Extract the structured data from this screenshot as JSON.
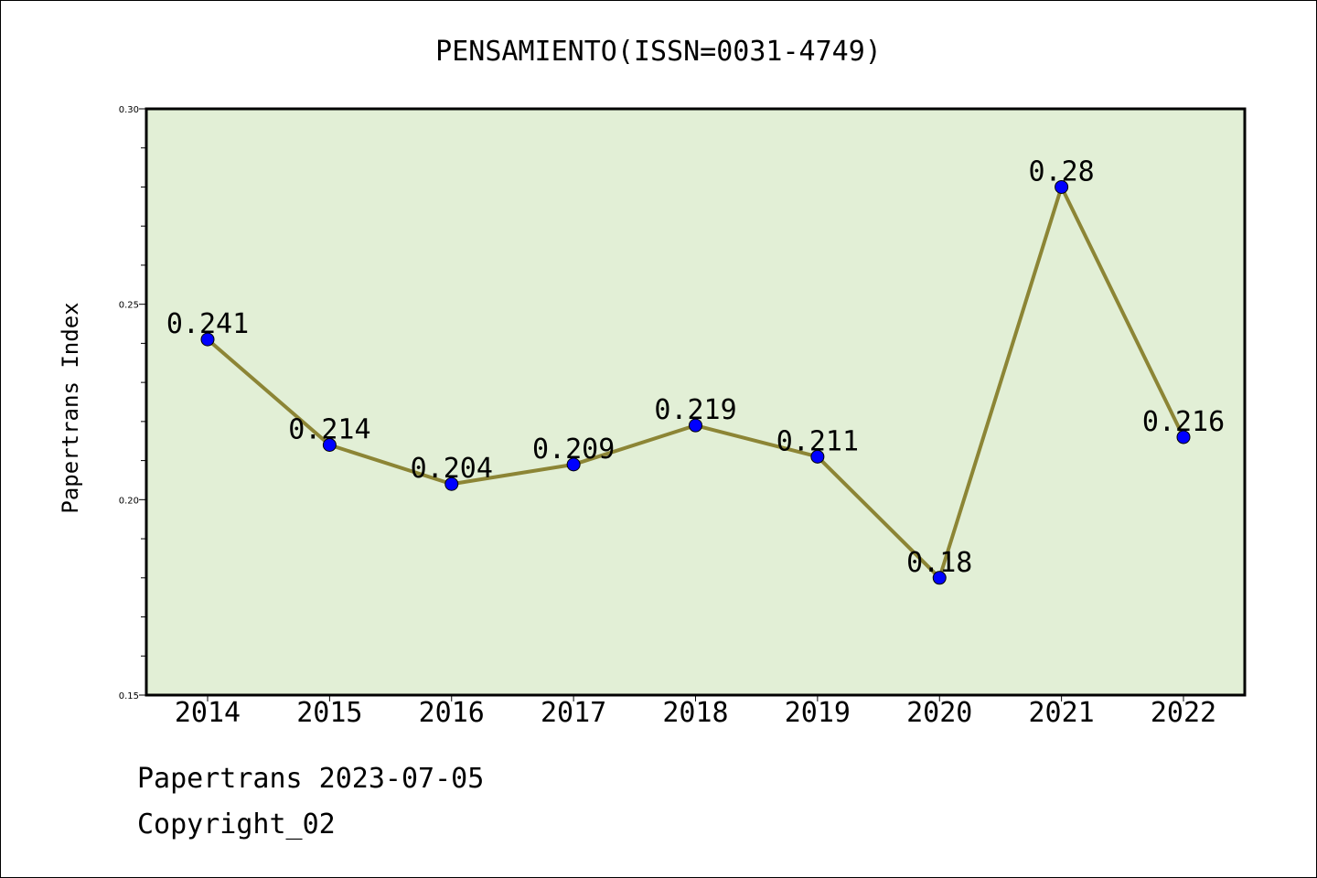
{
  "chart_data": {
    "type": "line",
    "title": "PENSAMIENTO(ISSN=0031-4749)",
    "xlabel": "",
    "ylabel": "Papertrans Index",
    "categories": [
      "2014",
      "2015",
      "2016",
      "2017",
      "2018",
      "2019",
      "2020",
      "2021",
      "2022"
    ],
    "series": [
      {
        "values": [
          0.241,
          0.214,
          0.204,
          0.209,
          0.219,
          0.211,
          0.18,
          0.28,
          0.216
        ],
        "labels": [
          "0.241",
          "0.214",
          "0.204",
          "0.209",
          "0.219",
          "0.211",
          "0.18",
          "0.28",
          "0.216"
        ]
      }
    ],
    "ylim": [
      0.15,
      0.3
    ],
    "yticks": [
      "0.15",
      "0.20",
      "0.25",
      "0.30"
    ],
    "grid": false,
    "colors": {
      "plot_background": "#e2efd6",
      "line": "#8c8535",
      "marker": "#0000ff"
    }
  },
  "footer": {
    "source": "Papertrans 2023-07-05",
    "copyright": "Copyright_02"
  }
}
